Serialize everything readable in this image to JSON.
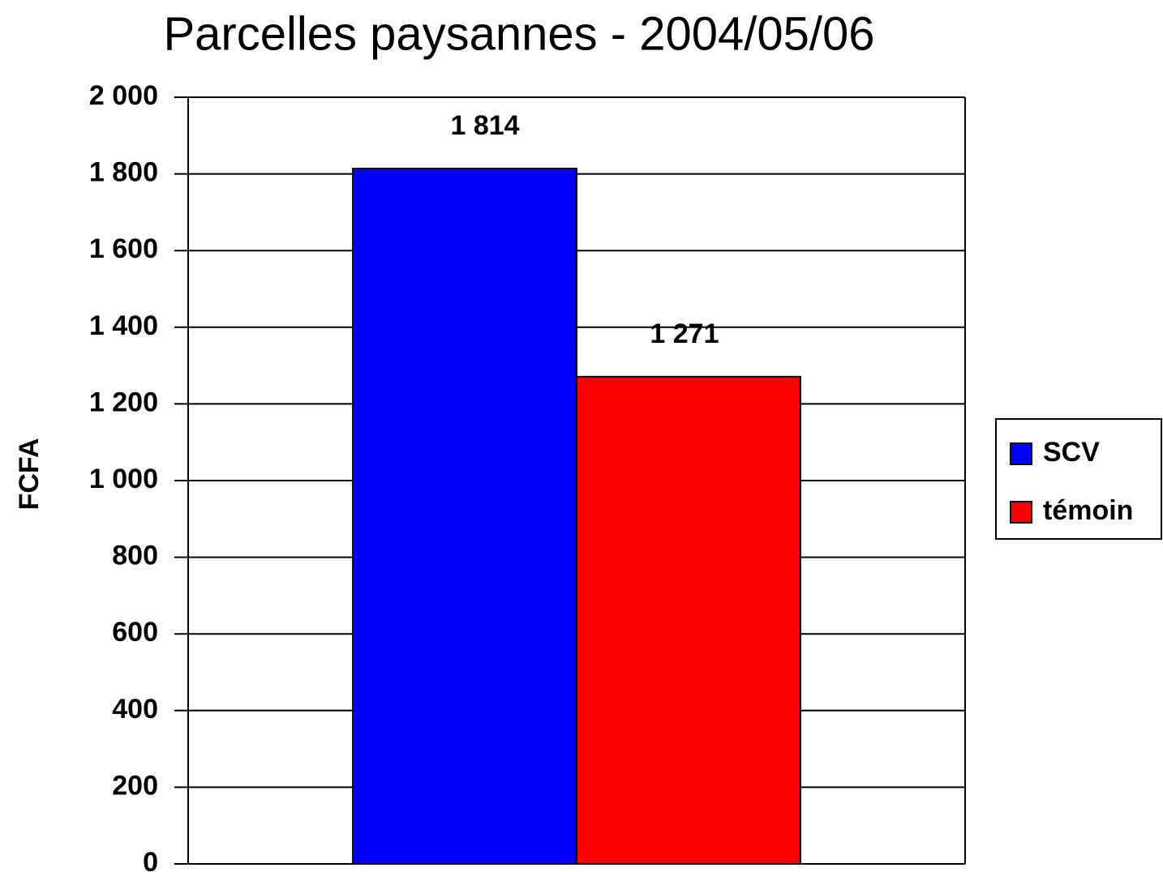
{
  "chart_data": {
    "type": "bar",
    "title": "Parcelles paysannes - 2004/05/06",
    "y_label": "FCFA",
    "categories": [
      null
    ],
    "series": [
      {
        "name": "SCV",
        "color": "#0000ff",
        "values": [
          1814
        ],
        "value_labels": [
          "1 814"
        ]
      },
      {
        "name": "témoin",
        "color": "#ff0000",
        "values": [
          1271
        ],
        "value_labels": [
          "1 271"
        ]
      }
    ],
    "ylim": [
      0,
      2000
    ],
    "yticks": [
      0,
      200,
      400,
      600,
      800,
      {
        "value": 1000,
        "label": "1 000"
      },
      {
        "value": 1200,
        "label": "1 200"
      },
      {
        "value": 1400,
        "label": "1 400"
      },
      {
        "value": 1600,
        "label": "1 600"
      },
      {
        "value": 1800,
        "label": "1 800"
      },
      {
        "value": 2000,
        "label": "2 000"
      }
    ],
    "grid": true,
    "legend": "right"
  }
}
